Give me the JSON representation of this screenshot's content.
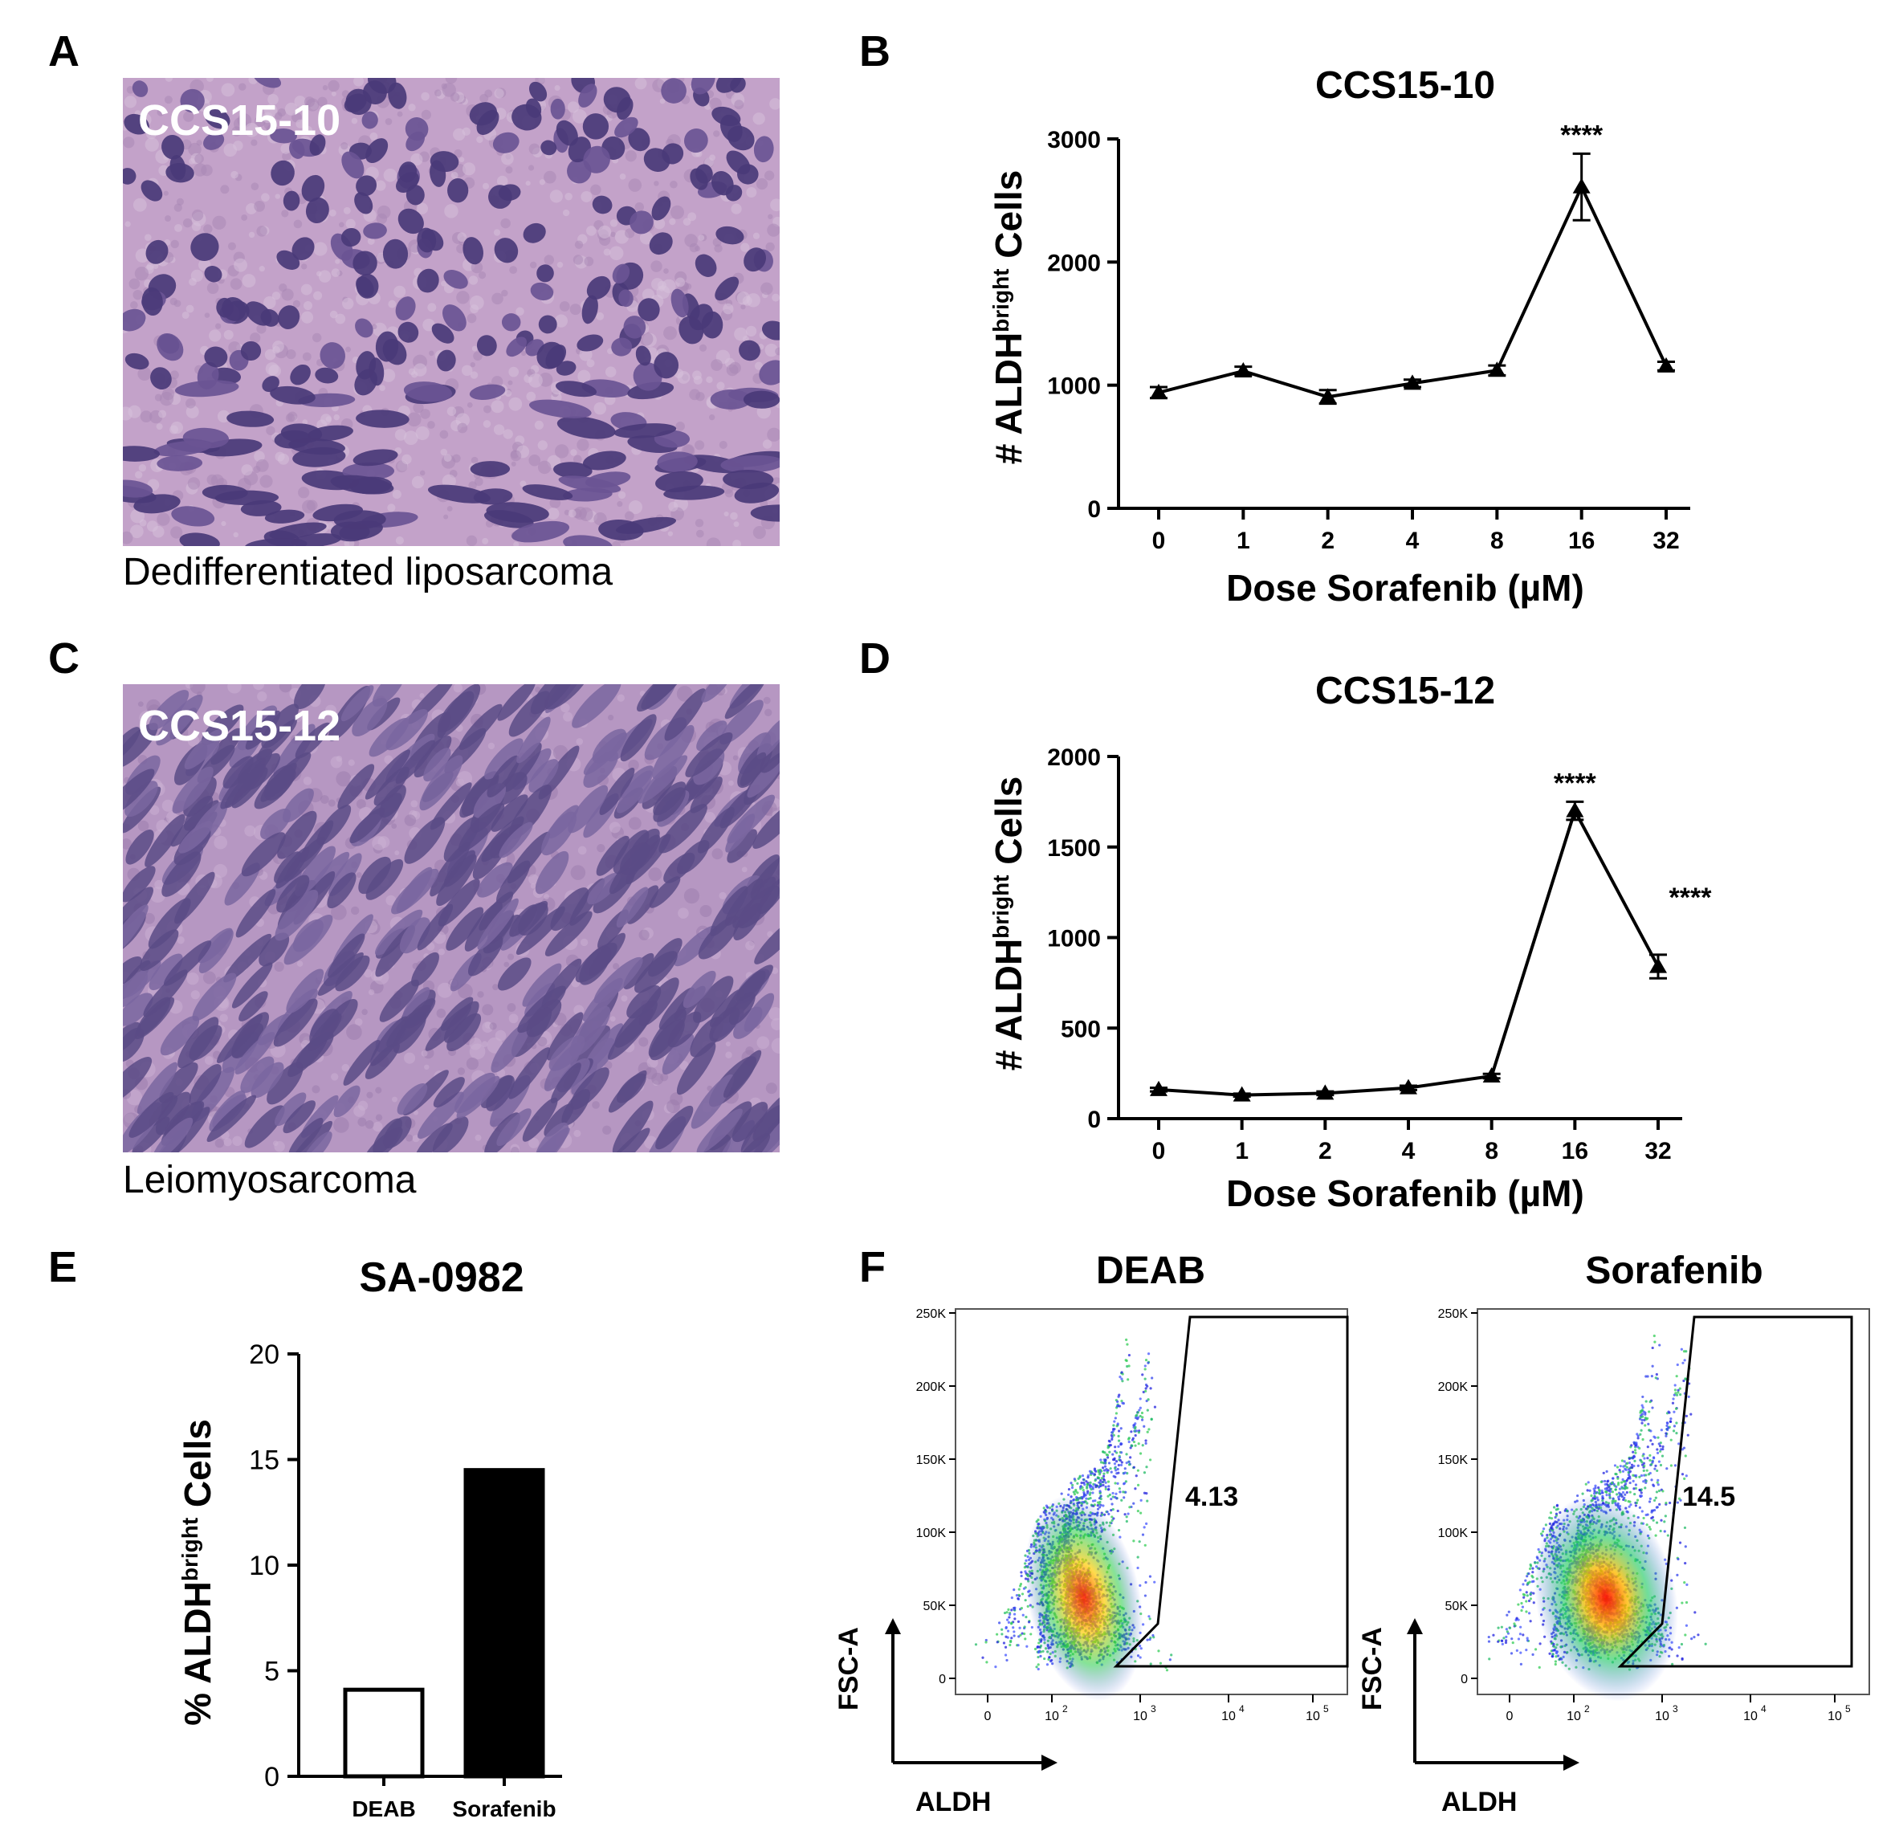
{
  "panels": {
    "A": {
      "letter": "A",
      "sample": "CCS15-10",
      "caption": "Dedifferentiated liposarcoma"
    },
    "B": {
      "letter": "B"
    },
    "C": {
      "letter": "C",
      "sample": "CCS15-12",
      "caption": "Leiomyosarcoma"
    },
    "D": {
      "letter": "D"
    },
    "E": {
      "letter": "E"
    },
    "F": {
      "letter": "F"
    }
  },
  "chart_data": [
    {
      "id": "B",
      "type": "line",
      "title": "CCS15-10",
      "xlabel": "Dose Sorafenib (µM)",
      "ylabel_prefix": "# ALDH",
      "ylabel_sup": "bright",
      "ylabel_suffix": " Cells",
      "categories": [
        "0",
        "1",
        "2",
        "4",
        "8",
        "16",
        "32"
      ],
      "values": [
        940,
        1115,
        905,
        1015,
        1120,
        2610,
        1155
      ],
      "errors": [
        45,
        35,
        55,
        30,
        40,
        270,
        35
      ],
      "significance": [
        {
          "index": 5,
          "label": "****"
        }
      ],
      "ylim": [
        0,
        3000
      ],
      "yticks": [
        0,
        1000,
        2000,
        3000
      ],
      "ytick_labels": [
        "0",
        "1000",
        "2000",
        "3000"
      ]
    },
    {
      "id": "D",
      "type": "line",
      "title": "CCS15-12",
      "xlabel": "Dose Sorafenib (µM)",
      "ylabel_prefix": "# ALDH",
      "ylabel_sup": "bright",
      "ylabel_suffix": " Cells",
      "categories": [
        "0",
        "1",
        "2",
        "4",
        "8",
        "16",
        "32"
      ],
      "values": [
        160,
        130,
        140,
        170,
        235,
        1700,
        840
      ],
      "errors": [
        10,
        8,
        10,
        12,
        12,
        50,
        65
      ],
      "significance": [
        {
          "index": 5,
          "label": "****"
        },
        {
          "index": 6,
          "label": "****"
        }
      ],
      "ylim": [
        0,
        2000
      ],
      "yticks": [
        0,
        500,
        1000,
        1500,
        2000
      ],
      "ytick_labels": [
        "0",
        "500",
        "1000",
        "1500",
        "2000"
      ]
    },
    {
      "id": "E",
      "type": "bar",
      "title": "SA-0982",
      "ylabel_prefix": "% ALDH",
      "ylabel_sup": "bright",
      "ylabel_suffix": " Cells",
      "categories": [
        "DEAB",
        "Sorafenib"
      ],
      "values": [
        4.1,
        14.5
      ],
      "bar_colors": [
        "#ffffff",
        "#000000"
      ],
      "ylim": [
        0,
        20
      ],
      "yticks": [
        0,
        5,
        10,
        15,
        20
      ],
      "ytick_labels": [
        "0",
        "5",
        "10",
        "15",
        "20"
      ]
    },
    {
      "id": "F1",
      "type": "scatter",
      "title": "DEAB",
      "xlabel": "ALDH",
      "ylabel": "FSC-A",
      "gate_value": "4.13",
      "yticks": [
        "0",
        "50K",
        "100K",
        "150K",
        "200K",
        "250K"
      ],
      "xticks": [
        "0",
        "10",
        "10",
        "10",
        "10"
      ],
      "xtick_exp": [
        "",
        "2",
        "3",
        "4",
        "5"
      ]
    },
    {
      "id": "F2",
      "type": "scatter",
      "title": "Sorafenib",
      "xlabel": "ALDH",
      "ylabel": "FSC-A",
      "gate_value": "14.5",
      "yticks": [
        "0",
        "50K",
        "100K",
        "150K",
        "200K",
        "250K"
      ],
      "xticks": [
        "0",
        "10",
        "10",
        "10",
        "10"
      ],
      "xtick_exp": [
        "",
        "2",
        "3",
        "4",
        "5"
      ]
    }
  ],
  "colors": {
    "he_base": "#c09fc6",
    "he_nucleus": "#4f3f7a",
    "axis": "#000000",
    "facs_low": "#2222cc",
    "facs_mid": "#2ecc40",
    "facs_high": "#dd2222"
  }
}
